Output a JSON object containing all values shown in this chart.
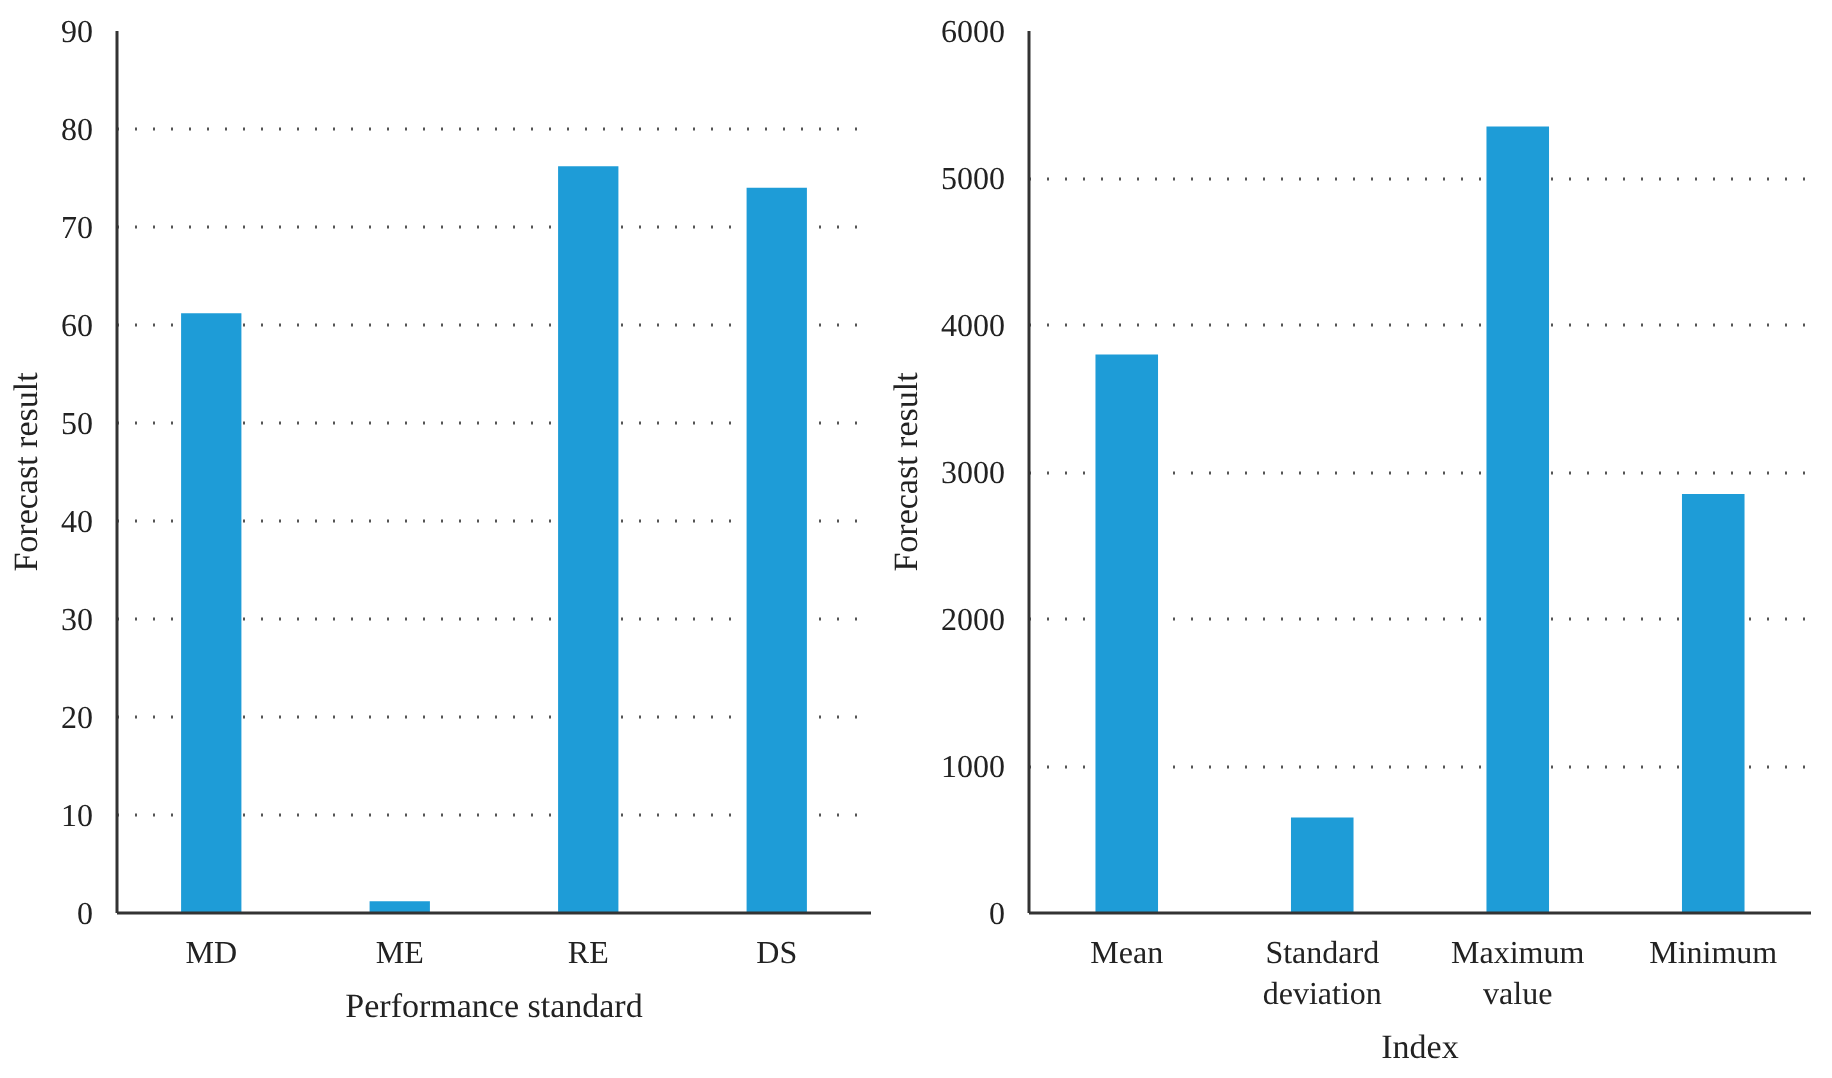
{
  "chart_data": [
    {
      "type": "bar",
      "xlabel": "Performance standard",
      "ylabel": "Forecast result",
      "categories": [
        "MD",
        "ME",
        "RE",
        "DS"
      ],
      "values": [
        61.2,
        1.2,
        76.2,
        74.0
      ],
      "color": "#1e9cd7",
      "ylim": [
        0,
        90
      ],
      "yticks": [
        0,
        10,
        20,
        30,
        40,
        50,
        60,
        70,
        80,
        90
      ],
      "grid": "y"
    },
    {
      "type": "bar",
      "xlabel": "Index",
      "ylabel": "Forecast result",
      "categories": [
        "Mean",
        "Standard deviation",
        "Maximum value",
        "Minimum"
      ],
      "values": [
        3800,
        650,
        5350,
        2850
      ],
      "color": "#1e9cd7",
      "ylim": [
        0,
        6000
      ],
      "yticks": [
        0,
        1000,
        2000,
        3000,
        4000,
        5000,
        6000
      ],
      "grid": "y"
    }
  ]
}
